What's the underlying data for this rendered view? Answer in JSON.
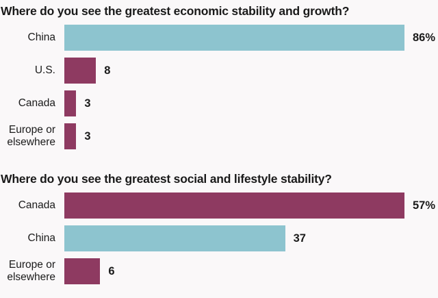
{
  "page": {
    "background": "#faf8f9",
    "text_color": "#1a1a1a"
  },
  "colors": {
    "teal": "#8dc4cf",
    "maroon": "#8e3a61"
  },
  "chart_data": [
    {
      "type": "bar",
      "orientation": "horizontal",
      "title": "Where do you see the greatest economic stability and growth?",
      "categories": [
        "China",
        "U.S.",
        "Canada",
        "Europe or elsewhere"
      ],
      "values": [
        86,
        8,
        3,
        3
      ],
      "value_labels": [
        "86%",
        "8",
        "3",
        "3"
      ],
      "bar_colors": [
        "teal",
        "maroon",
        "maroon",
        "maroon"
      ],
      "xlim": [
        0,
        86
      ],
      "grid": false,
      "legend": "none"
    },
    {
      "type": "bar",
      "orientation": "horizontal",
      "title": "Where do you see the greatest social and lifestyle stability?",
      "categories": [
        "Canada",
        "China",
        "Europe or elsewhere"
      ],
      "values": [
        57,
        37,
        6
      ],
      "value_labels": [
        "57%",
        "37",
        "6"
      ],
      "bar_colors": [
        "maroon",
        "teal",
        "maroon"
      ],
      "xlim": [
        0,
        57
      ],
      "grid": false,
      "legend": "none"
    }
  ]
}
